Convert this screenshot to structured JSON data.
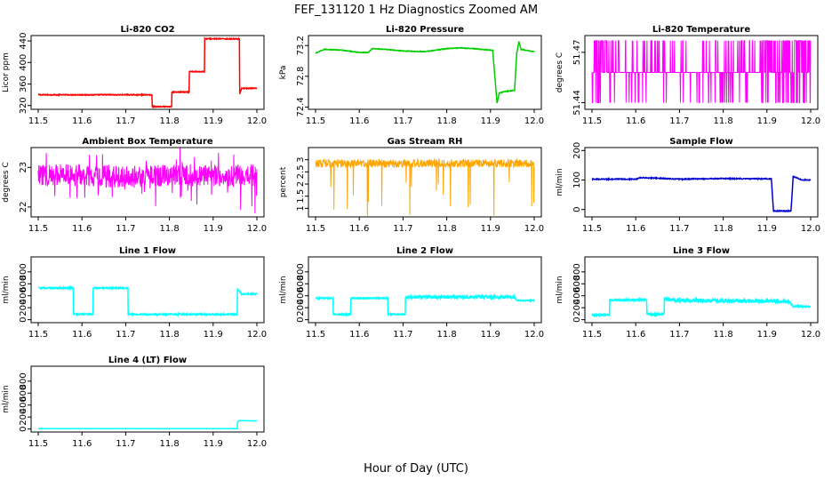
{
  "title": "FEF_131120  1 Hz Diagnostics Zoomed AM",
  "xlabel": "Hour of Day (UTC)",
  "chart_data": [
    {
      "type": "line",
      "title": "Li-820 CO2",
      "ylabel": "Licor ppm",
      "color": "#ff0000",
      "xlim": [
        11.5,
        12.0
      ],
      "xticks": [
        "11.5",
        "11.6",
        "11.7",
        "11.8",
        "11.9",
        "12.0"
      ],
      "ylim": [
        313,
        450
      ],
      "yticks": [
        320,
        360,
        400,
        440
      ],
      "x": [
        11.5,
        11.76,
        11.76,
        11.805,
        11.805,
        11.845,
        11.845,
        11.88,
        11.88,
        11.96,
        11.96,
        11.965,
        11.965,
        12.0
      ],
      "y": [
        340,
        340,
        318,
        318,
        345,
        345,
        383,
        383,
        444,
        444,
        340,
        352,
        352,
        352
      ]
    },
    {
      "type": "line",
      "title": "Li-820 Pressure",
      "ylabel": "kPa",
      "color": "#00cc00",
      "xlim": [
        11.5,
        12.0
      ],
      "xticks": [
        "11.5",
        "11.6",
        "11.7",
        "11.8",
        "11.9",
        "12.0"
      ],
      "ylim": [
        72.37,
        73.33
      ],
      "yticks": [
        72.4,
        72.8,
        73.2
      ],
      "x": [
        11.5,
        11.52,
        11.56,
        11.6,
        11.62,
        11.63,
        11.66,
        11.7,
        11.75,
        11.8,
        11.83,
        11.86,
        11.88,
        11.905,
        11.915,
        11.92,
        11.93,
        11.945,
        11.955,
        11.96,
        11.965,
        11.97,
        11.98,
        12.0
      ],
      "y": [
        73.1,
        73.15,
        73.14,
        73.11,
        73.11,
        73.16,
        73.15,
        73.13,
        73.12,
        73.16,
        73.17,
        73.16,
        73.15,
        73.14,
        72.45,
        72.58,
        72.6,
        72.61,
        72.62,
        73.1,
        73.25,
        73.15,
        73.14,
        73.12
      ]
    },
    {
      "type": "line",
      "title": "Li-820 Temperature",
      "ylabel": "degrees C",
      "color": "#ff00ff",
      "xlim": [
        11.5,
        12.0
      ],
      "xticks": [
        "11.5",
        "11.6",
        "11.7",
        "11.8",
        "11.9",
        "12.0"
      ],
      "ylim": [
        51.436,
        51.48
      ],
      "yticks": [
        51.44,
        51.47
      ],
      "levels": [
        51.44,
        51.458,
        51.477
      ],
      "x": [
        11.5,
        11.55,
        11.6,
        11.65,
        11.7,
        11.75,
        11.8,
        11.85,
        11.9,
        11.95,
        12.0
      ],
      "y": [
        51.458,
        51.458,
        51.458,
        51.458,
        51.458,
        51.458,
        51.458,
        51.458,
        51.458,
        51.458,
        51.458
      ]
    },
    {
      "type": "line",
      "title": "Ambient Box Temperature",
      "ylabel": "degrees C",
      "color": "#ff00ff",
      "xlim": [
        11.5,
        12.0
      ],
      "xticks": [
        "11.5",
        "11.6",
        "11.7",
        "11.8",
        "11.9",
        "12.0"
      ],
      "ylim": [
        21.75,
        23.5
      ],
      "yticks": [
        22.0,
        23.0
      ],
      "x": [
        11.5,
        11.6,
        11.7,
        11.8,
        11.9,
        12.0
      ],
      "y": [
        22.8,
        22.8,
        22.75,
        22.8,
        22.8,
        22.8
      ]
    },
    {
      "type": "line",
      "title": "Gas Stream RH",
      "ylabel": "percent",
      "color": "#ffa500",
      "xlim": [
        11.5,
        12.0
      ],
      "xticks": [
        "11.5",
        "11.6",
        "11.7",
        "11.8",
        "11.9",
        "12.0"
      ],
      "ylim": [
        0.65,
        3.5
      ],
      "yticks": [
        1.0,
        1.5,
        2.0,
        2.5,
        3.0
      ],
      "x": [
        11.5,
        11.6,
        11.7,
        11.8,
        11.9,
        12.0
      ],
      "y": [
        2.85,
        2.85,
        2.85,
        2.85,
        2.85,
        2.85
      ]
    },
    {
      "type": "line",
      "title": "Sample Flow",
      "ylabel": "ml/min",
      "color": "#0000cc",
      "xlim": [
        11.5,
        12.0
      ],
      "xticks": [
        "11.5",
        "11.6",
        "11.7",
        "11.8",
        "11.9",
        "12.0"
      ],
      "ylim": [
        -25,
        210
      ],
      "yticks": [
        0,
        100,
        200
      ],
      "x": [
        11.5,
        11.6,
        11.61,
        11.65,
        11.7,
        11.8,
        11.85,
        11.91,
        11.915,
        11.955,
        11.96,
        11.98,
        12.0
      ],
      "y": [
        103,
        103,
        108,
        106,
        103,
        105,
        104,
        104,
        -5,
        -5,
        112,
        100,
        100
      ]
    },
    {
      "type": "line",
      "title": "Line 1 Flow",
      "ylabel": "ml/min",
      "color": "#00ffff",
      "xlim": [
        11.5,
        12.0
      ],
      "xticks": [
        "11.5",
        "11.6",
        "11.7",
        "11.8",
        "11.9",
        "12.0"
      ],
      "ylim": [
        -50,
        1050
      ],
      "yticks": [
        0,
        200,
        400,
        600,
        800
      ],
      "x": [
        11.5,
        11.58,
        11.58,
        11.625,
        11.625,
        11.705,
        11.705,
        11.955,
        11.955,
        11.965,
        12.0
      ],
      "y": [
        530,
        530,
        90,
        90,
        530,
        530,
        90,
        90,
        520,
        430,
        430
      ]
    },
    {
      "type": "line",
      "title": "Line 2 Flow",
      "ylabel": "ml/min",
      "color": "#00ffff",
      "xlim": [
        11.5,
        12.0
      ],
      "xticks": [
        "11.5",
        "11.6",
        "11.7",
        "11.8",
        "11.9",
        "12.0"
      ],
      "ylim": [
        -50,
        1050
      ],
      "yticks": [
        0,
        200,
        400,
        600,
        800
      ],
      "x": [
        11.5,
        11.54,
        11.54,
        11.58,
        11.58,
        11.665,
        11.665,
        11.705,
        11.705,
        11.955,
        11.96,
        12.0
      ],
      "y": [
        360,
        360,
        90,
        90,
        360,
        360,
        90,
        90,
        380,
        380,
        320,
        320
      ]
    },
    {
      "type": "line",
      "title": "Line 3 Flow",
      "ylabel": "ml/min",
      "color": "#00ffff",
      "xlim": [
        11.5,
        12.0
      ],
      "xticks": [
        "11.5",
        "11.6",
        "11.7",
        "11.8",
        "11.9",
        "12.0"
      ],
      "ylim": [
        -50,
        1050
      ],
      "yticks": [
        0,
        200,
        400,
        600,
        800
      ],
      "x": [
        11.5,
        11.54,
        11.54,
        11.625,
        11.625,
        11.665,
        11.665,
        11.7,
        11.95,
        11.96,
        12.0
      ],
      "y": [
        80,
        80,
        330,
        330,
        90,
        90,
        350,
        320,
        310,
        220,
        220
      ]
    },
    {
      "type": "line",
      "title": "Line 4 (LT) Flow",
      "ylabel": "ml/min",
      "color": "#00ffff",
      "xlim": [
        11.5,
        12.0
      ],
      "xticks": [
        "11.5",
        "11.6",
        "11.7",
        "11.8",
        "11.9",
        "12.0"
      ],
      "ylim": [
        -50,
        1050
      ],
      "yticks": [
        0,
        200,
        400,
        600,
        800
      ],
      "x": [
        11.5,
        11.955,
        11.955,
        11.96,
        12.0
      ],
      "y": [
        5,
        5,
        110,
        140,
        135
      ]
    }
  ]
}
